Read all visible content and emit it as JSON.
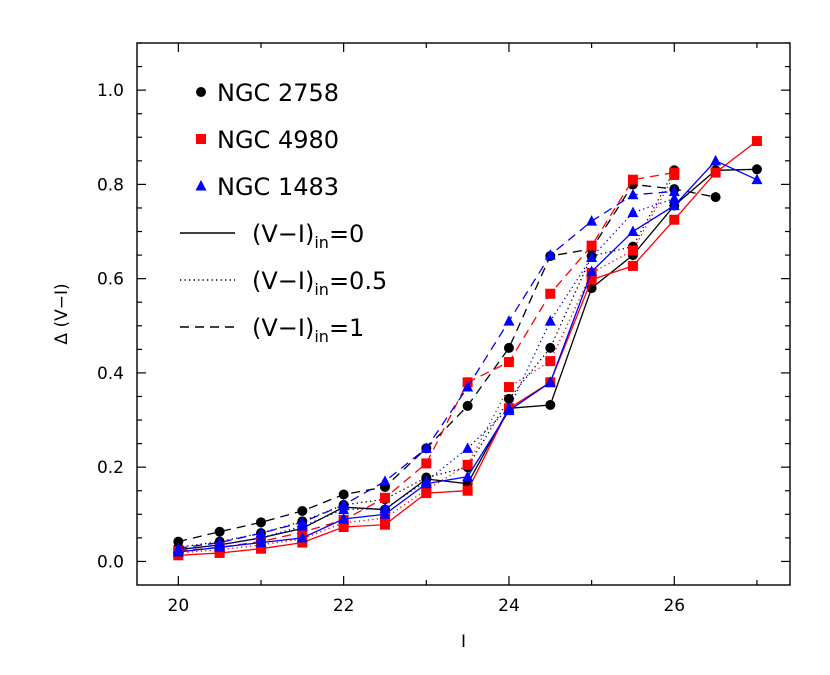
{
  "chart_data": {
    "type": "line",
    "xlabel": "I",
    "ylabel": "Δ (V−I)",
    "xlim": [
      19.5,
      27.4
    ],
    "ylim": [
      -0.05,
      1.1
    ],
    "xticks": [
      "20",
      "22",
      "24",
      "26"
    ],
    "yticks": [
      "0.0",
      "0.2",
      "0.4",
      "0.6",
      "0.8",
      "1.0"
    ],
    "grid": false,
    "legend_position": "top-left",
    "legend": {
      "markers": [
        {
          "label": "NGC 2758",
          "color": "#000000",
          "shape": "circle"
        },
        {
          "label": "NGC 4980",
          "color": "#ff0000",
          "shape": "square"
        },
        {
          "label": "NGC 1483",
          "color": "#0000ff",
          "shape": "triangle"
        }
      ],
      "lines": [
        {
          "base": "(V−I)",
          "sub": "in",
          "tail": "=0",
          "dash": "solid"
        },
        {
          "base": "(V−I)",
          "sub": "in",
          "tail": "=0.5",
          "dash": "dotted"
        },
        {
          "base": "(V−I)",
          "sub": "in",
          "tail": "=1",
          "dash": "dashed"
        }
      ]
    },
    "series": [
      {
        "galaxy": "NGC 2758",
        "color": "#000000",
        "marker": "circle",
        "dash": "solid",
        "x": [
          20,
          20.5,
          21,
          21.5,
          22,
          22.5,
          23,
          23.5,
          24,
          24.5,
          25,
          25.5,
          26,
          26.5,
          27
        ],
        "y": [
          0.025,
          0.035,
          0.05,
          0.07,
          0.115,
          0.11,
          0.175,
          0.165,
          0.325,
          0.332,
          0.58,
          0.65,
          0.755,
          0.83,
          0.832
        ]
      },
      {
        "galaxy": "NGC 2758",
        "color": "#000000",
        "marker": "circle",
        "dash": "dotted",
        "x": [
          20,
          20.5,
          21,
          21.5,
          22,
          22.5,
          23,
          23.5,
          24,
          24.5,
          25,
          25.5,
          26
        ],
        "y": [
          0.03,
          0.042,
          0.06,
          0.085,
          0.12,
          0.132,
          0.178,
          0.2,
          0.345,
          0.453,
          0.648,
          0.668,
          0.83
        ]
      },
      {
        "galaxy": "NGC 2758",
        "color": "#000000",
        "marker": "circle",
        "dash": "dashed",
        "x": [
          20,
          20.5,
          21,
          21.5,
          22,
          22.5,
          23,
          23.5,
          24,
          24.5,
          25,
          25.5,
          26,
          26.5
        ],
        "y": [
          0.042,
          0.063,
          0.083,
          0.107,
          0.142,
          0.158,
          0.24,
          0.33,
          0.453,
          0.648,
          0.663,
          0.8,
          0.79,
          0.773
        ]
      },
      {
        "galaxy": "NGC 4980",
        "color": "#ff0000",
        "marker": "square",
        "dash": "solid",
        "x": [
          20,
          20.5,
          21,
          21.5,
          22,
          22.5,
          23,
          23.5,
          24,
          24.5,
          25,
          25.5,
          26,
          26.5,
          27
        ],
        "y": [
          0.013,
          0.018,
          0.027,
          0.04,
          0.073,
          0.078,
          0.145,
          0.15,
          0.325,
          0.38,
          0.598,
          0.627,
          0.725,
          0.825,
          0.892
        ]
      },
      {
        "galaxy": "NGC 4980",
        "color": "#ff0000",
        "marker": "square",
        "dash": "dotted",
        "x": [
          20,
          20.5,
          21,
          21.5,
          22,
          22.5,
          23,
          23.5,
          24,
          24.5,
          25,
          25.5,
          26
        ],
        "y": [
          0.018,
          0.025,
          0.035,
          0.048,
          0.082,
          0.092,
          0.152,
          0.205,
          0.37,
          0.425,
          0.612,
          0.66,
          0.82
        ]
      },
      {
        "galaxy": "NGC 4980",
        "color": "#ff0000",
        "marker": "square",
        "dash": "dashed",
        "x": [
          20,
          20.5,
          21,
          21.5,
          22,
          22.5,
          23,
          23.5,
          24,
          24.5,
          25,
          25.5,
          26
        ],
        "y": [
          0.022,
          0.03,
          0.042,
          0.062,
          0.088,
          0.135,
          0.208,
          0.38,
          0.423,
          0.568,
          0.67,
          0.81,
          0.825
        ]
      },
      {
        "galaxy": "NGC 1483",
        "color": "#0000ff",
        "marker": "triangle",
        "dash": "solid",
        "x": [
          20,
          20.5,
          21,
          21.5,
          22,
          22.5,
          23,
          23.5,
          24,
          24.5,
          25,
          25.5,
          26,
          26.5,
          27
        ],
        "y": [
          0.02,
          0.03,
          0.04,
          0.05,
          0.09,
          0.1,
          0.165,
          0.18,
          0.32,
          0.38,
          0.615,
          0.7,
          0.755,
          0.85,
          0.81
        ]
      },
      {
        "galaxy": "NGC 1483",
        "color": "#0000ff",
        "marker": "triangle",
        "dash": "dotted",
        "x": [
          20,
          20.5,
          21,
          21.5,
          22,
          22.5,
          23,
          23.5,
          24,
          24.5,
          25,
          25.5,
          26
        ],
        "y": [
          0.025,
          0.035,
          0.05,
          0.075,
          0.11,
          0.112,
          0.17,
          0.24,
          0.325,
          0.51,
          0.645,
          0.74,
          0.77
        ]
      },
      {
        "galaxy": "NGC 1483",
        "color": "#0000ff",
        "marker": "triangle",
        "dash": "dashed",
        "x": [
          20,
          20.5,
          21,
          21.5,
          22,
          22.5,
          23,
          23.5,
          24,
          24.5,
          25,
          25.5,
          26
        ],
        "y": [
          0.028,
          0.04,
          0.06,
          0.083,
          0.12,
          0.17,
          0.24,
          0.37,
          0.51,
          0.65,
          0.722,
          0.778,
          0.785
        ]
      }
    ]
  }
}
